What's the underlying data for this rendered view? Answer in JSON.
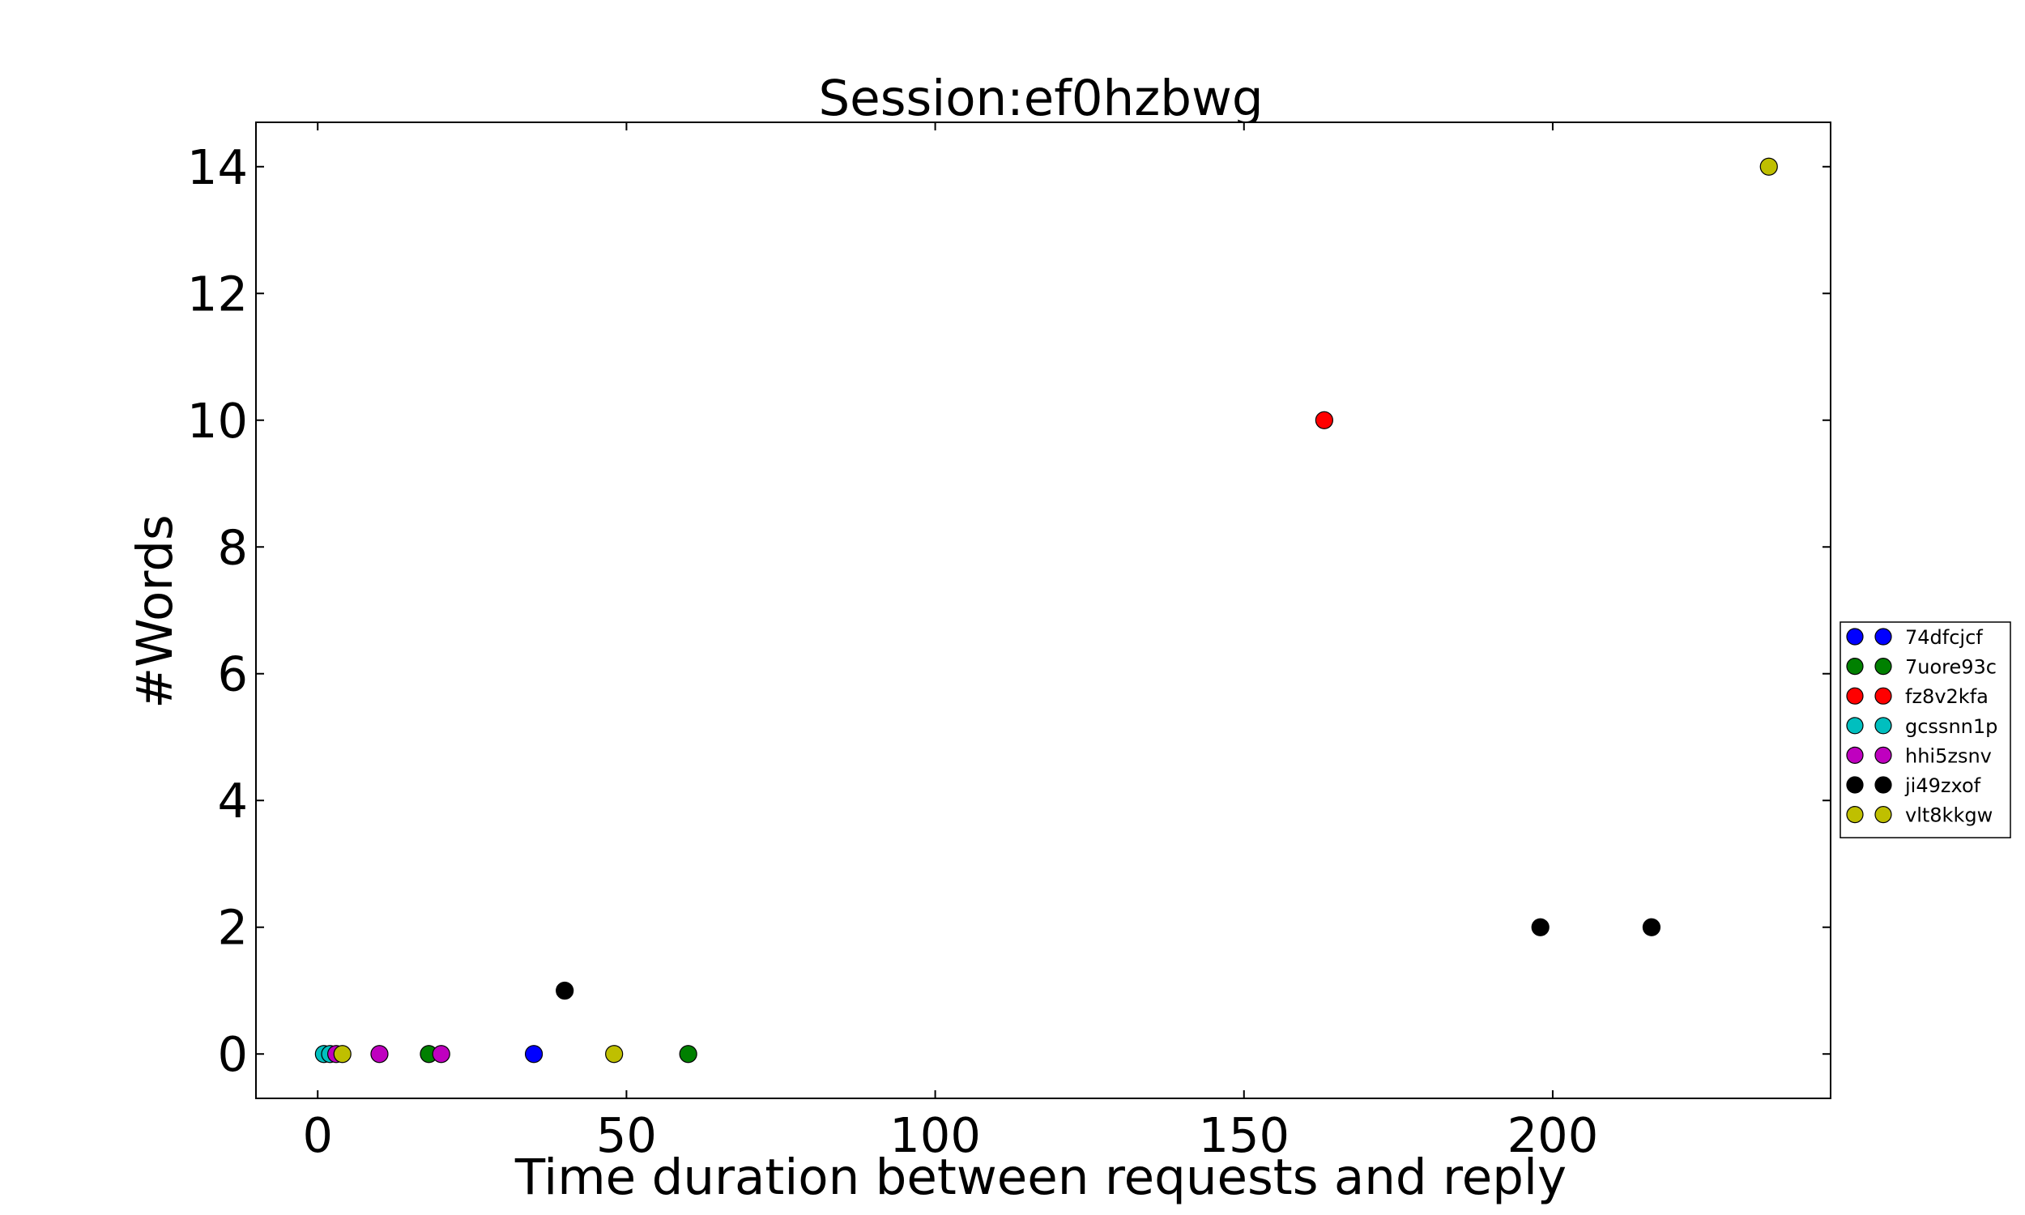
{
  "chart_data": {
    "type": "scatter",
    "title": "Session:ef0hzbwg",
    "xlabel": "Time duration between requests and reply",
    "ylabel": "#Words",
    "xlim": [
      -10,
      245
    ],
    "ylim": [
      -0.7,
      14.7
    ],
    "xticks": [
      0,
      50,
      100,
      150,
      200
    ],
    "yticks": [
      0,
      2,
      4,
      6,
      8,
      10,
      12,
      14
    ],
    "grid": false,
    "legend_position": "right",
    "series": [
      {
        "name": "74dfcjcf",
        "color": "#0000ff",
        "points": [
          {
            "x": 35,
            "y": 0
          }
        ]
      },
      {
        "name": "7uore93c",
        "color": "#008000",
        "points": [
          {
            "x": 18,
            "y": 0
          },
          {
            "x": 60,
            "y": 0
          }
        ]
      },
      {
        "name": "fz8v2kfa",
        "color": "#ff0000",
        "points": [
          {
            "x": 163,
            "y": 10
          }
        ]
      },
      {
        "name": "gcssnn1p",
        "color": "#00bfbf",
        "points": [
          {
            "x": 1,
            "y": 0
          },
          {
            "x": 2,
            "y": 0
          }
        ]
      },
      {
        "name": "hhi5zsnv",
        "color": "#bf00bf",
        "points": [
          {
            "x": 3,
            "y": 0
          },
          {
            "x": 10,
            "y": 0
          },
          {
            "x": 20,
            "y": 0
          }
        ]
      },
      {
        "name": "ji49zxof",
        "color": "#000000",
        "points": [
          {
            "x": 40,
            "y": 1
          },
          {
            "x": 198,
            "y": 2
          },
          {
            "x": 216,
            "y": 2
          }
        ]
      },
      {
        "name": "vlt8kkgw",
        "color": "#bfbf00",
        "points": [
          {
            "x": 4,
            "y": 0
          },
          {
            "x": 48,
            "y": 0
          },
          {
            "x": 235,
            "y": 14
          }
        ]
      }
    ]
  }
}
